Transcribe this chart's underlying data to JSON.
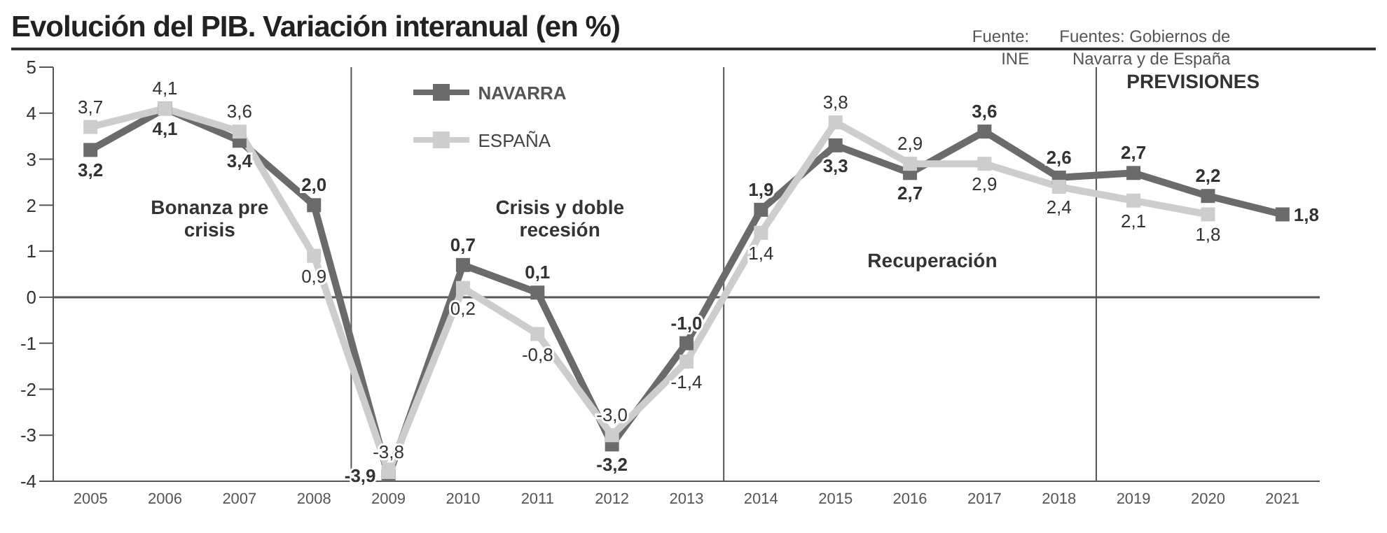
{
  "chart_data": {
    "type": "line",
    "title": "Evolución del PIB. Variación interanual (en %)",
    "x": [
      2005,
      2006,
      2007,
      2008,
      2009,
      2010,
      2011,
      2012,
      2013,
      2014,
      2015,
      2016,
      2017,
      2018,
      2019,
      2020,
      2021
    ],
    "series": [
      {
        "name": "NAVARRA",
        "color": "#6b6b6b",
        "values": [
          3.2,
          4.1,
          3.4,
          2.0,
          -3.9,
          0.7,
          0.1,
          -3.2,
          -1.0,
          1.9,
          3.3,
          2.7,
          3.6,
          2.6,
          2.7,
          2.2,
          1.8
        ],
        "value_labels": [
          "3,2",
          "4,1",
          "3,4",
          "2,0",
          "-3,9",
          "0,7",
          "0,1",
          "-3,2",
          "-1,0",
          "1,9",
          "3,3",
          "2,7",
          "3,6",
          "2,6",
          "2,7",
          "2,2",
          "1,8"
        ]
      },
      {
        "name": "ESPAÑA",
        "color": "#cdcdcd",
        "values": [
          3.7,
          4.1,
          3.6,
          0.9,
          -3.8,
          0.2,
          -0.8,
          -3.0,
          -1.4,
          1.4,
          3.8,
          2.9,
          2.9,
          2.4,
          2.1,
          1.8,
          null
        ],
        "value_labels": [
          "3,7",
          "4,1",
          "3,6",
          "0,9",
          "-3,8",
          "0,2",
          "-0,8",
          "-3,0",
          "-1,4",
          "1,4",
          "3,8",
          "2,9",
          "2,9",
          "2,4",
          "2,1",
          "1,8",
          null
        ]
      }
    ],
    "xlim": [
      2004.5,
      2021.5
    ],
    "xticks": [
      2005,
      2006,
      2007,
      2008,
      2009,
      2010,
      2011,
      2012,
      2013,
      2014,
      2015,
      2016,
      2017,
      2018,
      2019,
      2020,
      2021
    ],
    "ylim": [
      -4,
      5
    ],
    "yticks": [
      -4,
      -3,
      -2,
      -1,
      0,
      1,
      2,
      3,
      4,
      5
    ],
    "ref_lines": [
      {
        "axis": "y",
        "value": 0,
        "color": "#555555"
      },
      {
        "axis": "x",
        "value": 2008.5,
        "color": "#555555"
      },
      {
        "axis": "x",
        "value": 2013.5,
        "color": "#555555"
      },
      {
        "axis": "x",
        "value": 2018.5,
        "color": "#555555"
      }
    ],
    "annotations": [
      "Bonanza pre crisis",
      "Crisis y doble recesión",
      "Recuperación",
      "PREVISIONES",
      "Fuente: INE",
      "Fuentes: Gobiernos de Navarra y de España"
    ],
    "marker": "square",
    "line_style": "solid",
    "legend": "top"
  }
}
